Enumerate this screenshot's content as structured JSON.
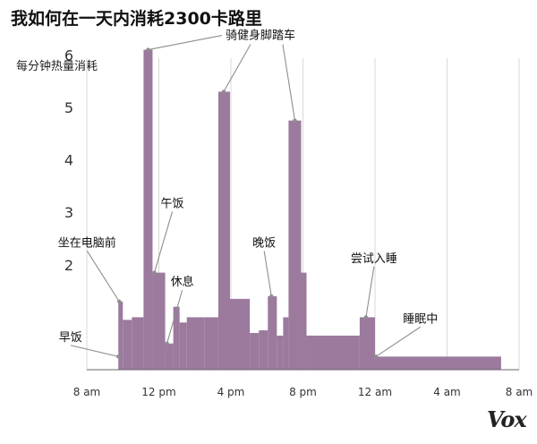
{
  "title": "我如何在一天内消耗2300卡路里",
  "brand": "Vox",
  "chart_data": {
    "type": "bar",
    "title": "我如何在一天内消耗2300卡路里",
    "ylabel": "每分钟热量消耗",
    "xlabel": "",
    "ylim": [
      0,
      6.6
    ],
    "y_ticks": [
      2,
      3,
      4,
      5,
      6
    ],
    "x_ticks": [
      {
        "hour": 0,
        "label": "8 am"
      },
      {
        "hour": 4,
        "label": "12 pm"
      },
      {
        "hour": 8,
        "label": "4 pm"
      },
      {
        "hour": 12,
        "label": "8 pm"
      },
      {
        "hour": 16,
        "label": "12 am"
      },
      {
        "hour": 20,
        "label": "4 am"
      },
      {
        "hour": 24,
        "label": "8 am"
      }
    ],
    "bar_color": "#9b7a9e",
    "bars": [
      {
        "start": 1.75,
        "end": 2.0,
        "value": 1.3
      },
      {
        "start": 2.0,
        "end": 2.5,
        "value": 0.95
      },
      {
        "start": 2.5,
        "end": 3.15,
        "value": 1.0
      },
      {
        "start": 3.15,
        "end": 3.65,
        "value": 6.1
      },
      {
        "start": 3.65,
        "end": 4.35,
        "value": 1.85
      },
      {
        "start": 4.35,
        "end": 4.8,
        "value": 0.5
      },
      {
        "start": 4.8,
        "end": 5.15,
        "value": 1.2
      },
      {
        "start": 5.15,
        "end": 5.55,
        "value": 0.9
      },
      {
        "start": 5.55,
        "end": 6.55,
        "value": 1.0
      },
      {
        "start": 6.55,
        "end": 7.3,
        "value": 1.0
      },
      {
        "start": 7.3,
        "end": 7.95,
        "value": 5.3
      },
      {
        "start": 7.95,
        "end": 9.05,
        "value": 1.35
      },
      {
        "start": 9.05,
        "end": 9.55,
        "value": 0.7
      },
      {
        "start": 9.55,
        "end": 10.05,
        "value": 0.75
      },
      {
        "start": 10.05,
        "end": 10.55,
        "value": 1.4
      },
      {
        "start": 10.55,
        "end": 10.9,
        "value": 0.65
      },
      {
        "start": 10.9,
        "end": 11.2,
        "value": 1.0
      },
      {
        "start": 11.2,
        "end": 11.9,
        "value": 4.75
      },
      {
        "start": 11.9,
        "end": 12.2,
        "value": 1.85
      },
      {
        "start": 12.2,
        "end": 15.15,
        "value": 0.65
      },
      {
        "start": 15.15,
        "end": 16.0,
        "value": 1.0
      },
      {
        "start": 16.0,
        "end": 23.0,
        "value": 0.25
      }
    ],
    "annotations": [
      {
        "label": "早饭",
        "target": {
          "hour": 1.75,
          "value": 0.25
        },
        "text_pos": {
          "hour": -1.55,
          "value": 0.55
        },
        "anchor": "start"
      },
      {
        "label": "坐在电脑前",
        "target": {
          "hour": 1.8,
          "value": 1.3
        },
        "text_pos": {
          "hour": -1.6,
          "value": 2.35
        },
        "anchor": "start"
      },
      {
        "label": "午饭",
        "target": {
          "hour": 3.75,
          "value": 1.85
        },
        "text_pos": {
          "hour": 4.1,
          "value": 3.1
        },
        "anchor": "start"
      },
      {
        "label": "休息",
        "target": {
          "hour": 4.45,
          "value": 0.5
        },
        "text_pos": {
          "hour": 4.65,
          "value": 1.6
        },
        "anchor": "start"
      },
      {
        "label": "晚饭",
        "target": {
          "hour": 10.25,
          "value": 1.4
        },
        "text_pos": {
          "hour": 9.2,
          "value": 2.35
        },
        "anchor": "start"
      },
      {
        "label": "尝试入睡",
        "target": {
          "hour": 15.5,
          "value": 1.0
        },
        "text_pos": {
          "hour": 14.65,
          "value": 2.05
        },
        "anchor": "start"
      },
      {
        "label": "睡眠中",
        "target": {
          "hour": 16.05,
          "value": 0.25
        },
        "text_pos": {
          "hour": 17.55,
          "value": 0.9
        },
        "anchor": "start"
      }
    ],
    "callout": {
      "label": "骑健身脚踏车",
      "text_pos": {
        "hour": 7.7,
        "value": 6.1
      },
      "targets": [
        {
          "hour": 3.4,
          "value": 6.1
        },
        {
          "hour": 7.6,
          "value": 5.3
        },
        {
          "hour": 11.55,
          "value": 4.75
        }
      ]
    }
  }
}
